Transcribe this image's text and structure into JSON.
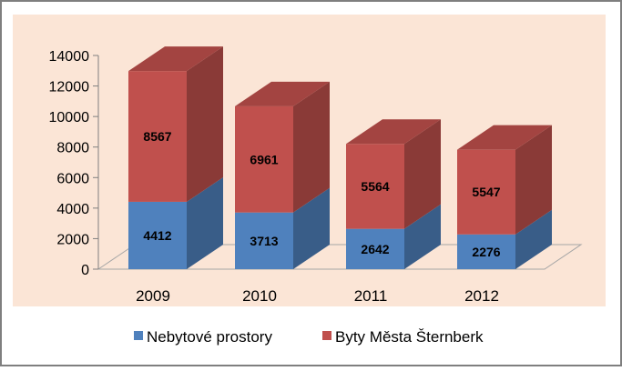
{
  "chart_data": {
    "type": "bar",
    "stacked": true,
    "three_d": true,
    "categories": [
      "2009",
      "2010",
      "2011",
      "2012"
    ],
    "series": [
      {
        "name": "Nebytové prostory",
        "values": [
          4412,
          3713,
          2642,
          2276
        ],
        "color": "#4F81BD"
      },
      {
        "name": "Byty Města Šternberk",
        "values": [
          8567,
          6961,
          5564,
          5547
        ],
        "color": "#C0504D"
      }
    ],
    "ylim": [
      0,
      14000
    ],
    "yticks": [
      "0",
      "2000",
      "4000",
      "6000",
      "8000",
      "10000",
      "12000",
      "14000"
    ],
    "title": "",
    "xlabel": "",
    "ylabel": "",
    "legend": "bottom",
    "grid": false,
    "plot_background": "#FBE5D6",
    "frame_color": "#7F7F7F"
  }
}
